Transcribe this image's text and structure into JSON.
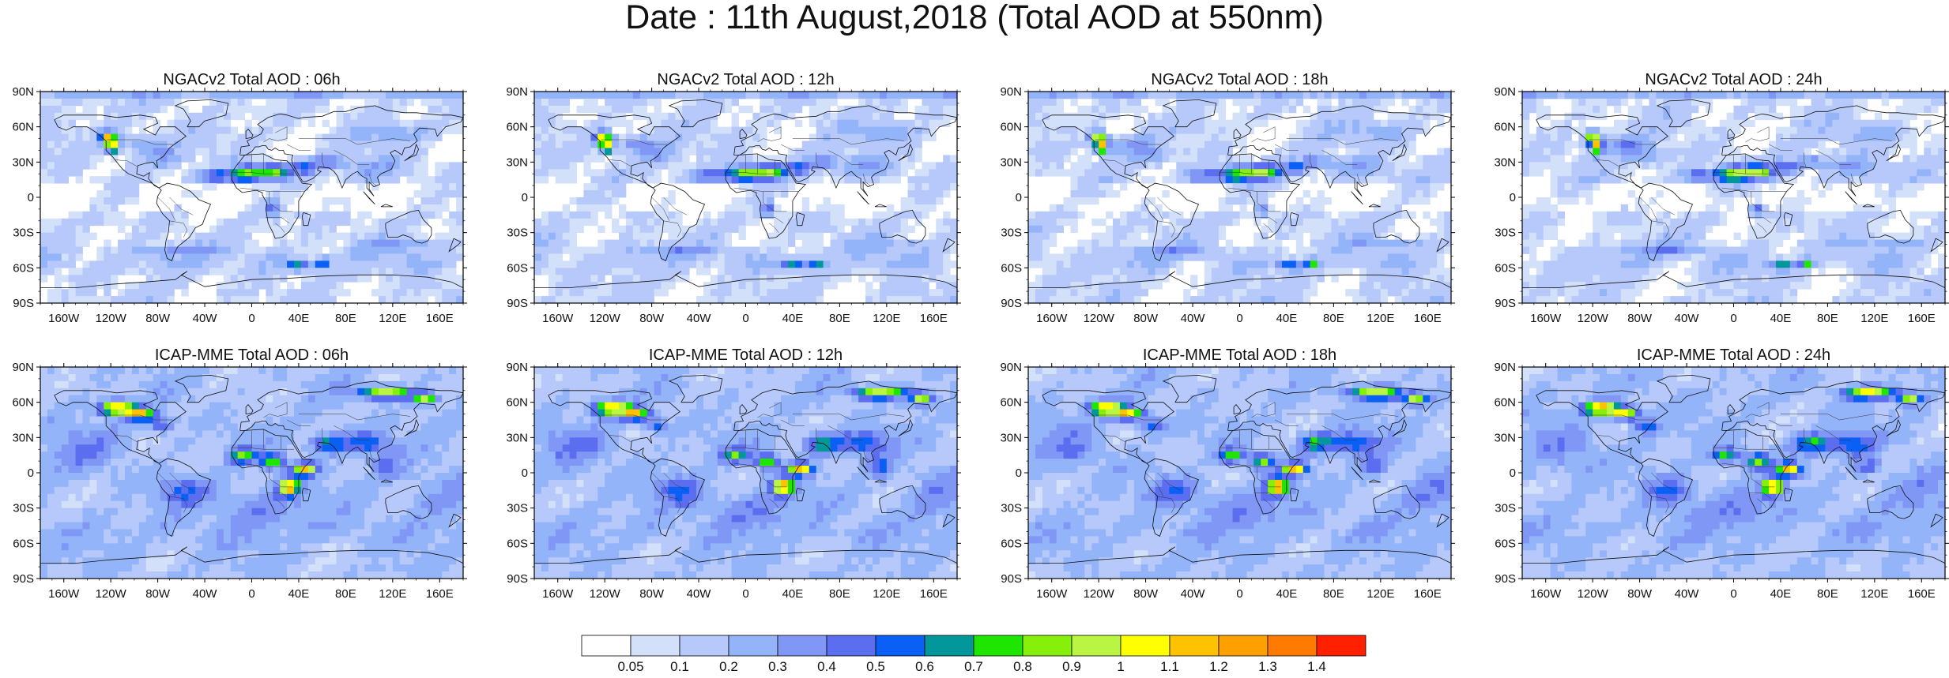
{
  "title": "Date : 11th August,2018 (Total AOD at 550nm)",
  "lat_labels": [
    "90N",
    "60N",
    "30N",
    "0",
    "30S",
    "60S",
    "90S"
  ],
  "lon_labels": [
    "160W",
    "120W",
    "80W",
    "40W",
    "0",
    "40E",
    "80E",
    "120E",
    "160E"
  ],
  "panels": [
    {
      "title": "NGACv2 Total AOD : 06h",
      "model": "ngac"
    },
    {
      "title": "NGACv2 Total AOD : 12h",
      "model": "ngac"
    },
    {
      "title": "NGACv2 Total AOD : 18h",
      "model": "ngac"
    },
    {
      "title": "NGACv2 Total AOD : 24h",
      "model": "ngac"
    },
    {
      "title": "ICAP-MME Total AOD : 06h",
      "model": "icap"
    },
    {
      "title": "ICAP-MME Total AOD : 12h",
      "model": "icap"
    },
    {
      "title": "ICAP-MME Total AOD : 18h",
      "model": "icap"
    },
    {
      "title": "ICAP-MME Total AOD : 24h",
      "model": "icap"
    }
  ],
  "colorbar": {
    "colors": [
      "#ffffff",
      "#d2e0fa",
      "#b6c9fa",
      "#94b4fa",
      "#8097f5",
      "#5b6ef0",
      "#0a5ff5",
      "#02979a",
      "#1ee600",
      "#86f00a",
      "#b9f542",
      "#ffff00",
      "#ffc200",
      "#ffa000",
      "#ff7a00",
      "#ff2000"
    ],
    "labels": [
      "0.05",
      "0.1",
      "0.2",
      "0.3",
      "0.4",
      "0.5",
      "0.6",
      "0.7",
      "0.8",
      "0.9",
      "1",
      "1.1",
      "1.2",
      "1.3",
      "1.4"
    ]
  }
}
